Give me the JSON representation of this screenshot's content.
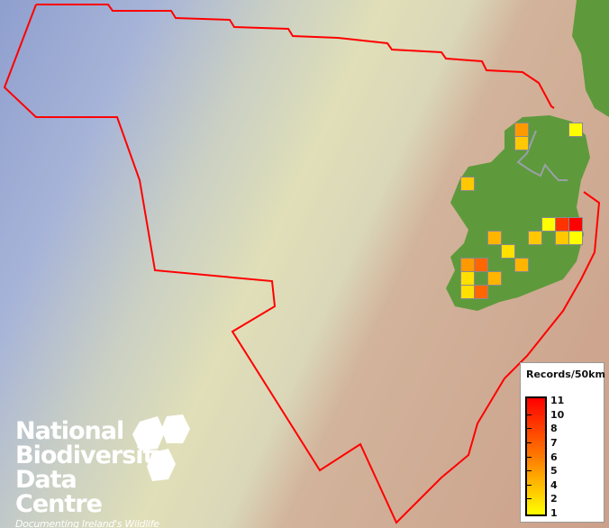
{
  "legend": {
    "title": "Records/50km",
    "labels": [
      "11",
      "10",
      "8",
      "7",
      "6",
      "5",
      "4",
      "2",
      "1"
    ],
    "color_high": "#ff0000",
    "color_low": "#ffff00"
  },
  "logo": {
    "name": "National Biodiversity Data Centre",
    "tagline": "Documenting Ireland's Wildlife"
  },
  "colors": {
    "boundary": "#ff0000",
    "land": "#5e9a3c",
    "grid_border": "#8a8a8a"
  },
  "records": [
    {
      "col": 0,
      "row": 0,
      "color": "#ff9900",
      "label": "orange"
    },
    {
      "col": 0,
      "row": 1,
      "color": "#ffc800"
    },
    {
      "col": 4,
      "row": 0,
      "color": "#ffff00"
    },
    {
      "col": -4,
      "row": 4,
      "color": "#ffc800"
    },
    {
      "col": 2,
      "row": 7,
      "color": "#ffff00"
    },
    {
      "col": 3,
      "row": 7,
      "color": "#ff3300"
    },
    {
      "col": 4,
      "row": 7,
      "color": "#ff0000"
    },
    {
      "col": -2,
      "row": 8,
      "color": "#ffb400"
    },
    {
      "col": 1,
      "row": 8,
      "color": "#ffc800"
    },
    {
      "col": 3,
      "row": 8,
      "color": "#ffc800"
    },
    {
      "col": 4,
      "row": 8,
      "color": "#ffff00"
    },
    {
      "col": -1,
      "row": 9,
      "color": "#ffe000"
    },
    {
      "col": -4,
      "row": 10,
      "color": "#ff9900"
    },
    {
      "col": -3,
      "row": 10,
      "color": "#ff6600"
    },
    {
      "col": 0,
      "row": 10,
      "color": "#ffb400"
    },
    {
      "col": -4,
      "row": 11,
      "color": "#ffe000"
    },
    {
      "col": -2,
      "row": 11,
      "color": "#ffb400"
    },
    {
      "col": -4,
      "row": 12,
      "color": "#ffe000"
    },
    {
      "col": -3,
      "row": 12,
      "color": "#ff6600"
    }
  ]
}
